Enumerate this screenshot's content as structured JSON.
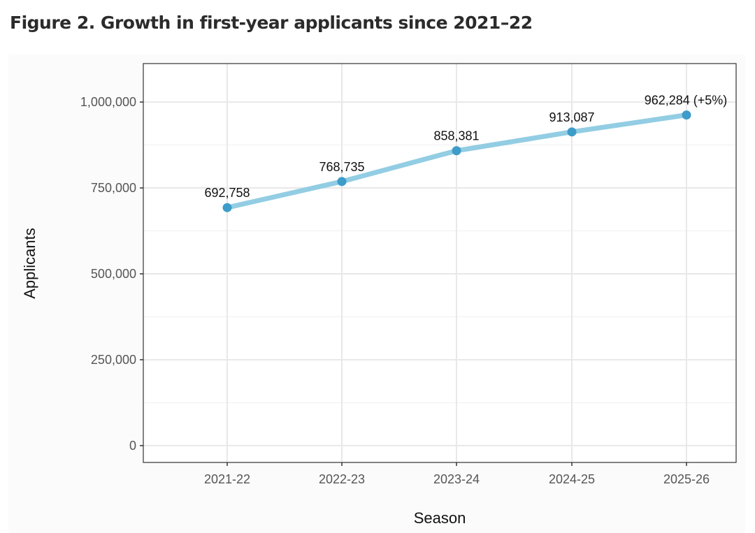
{
  "title": "Figure 2. Growth in first-year applicants since 2021–22",
  "chart_data": {
    "type": "line",
    "categories": [
      "2021-22",
      "2022-23",
      "2023-24",
      "2024-25",
      "2025-26"
    ],
    "values": [
      692758,
      768735,
      858381,
      913087,
      962284
    ],
    "data_labels": [
      "692,758",
      "768,735",
      "858,381",
      "913,087",
      "962,284 (+5%)"
    ],
    "xlabel": "Season",
    "ylabel": "Applicants",
    "yticks": [
      0,
      250000,
      500000,
      750000,
      1000000
    ],
    "ytick_labels": [
      "0",
      "250,000",
      "500,000",
      "750,000",
      "1,000,000"
    ],
    "ylim": [
      -49000,
      1112000
    ],
    "grid": true,
    "line_color": "#92cde3",
    "point_color": "#3d9cc9"
  }
}
